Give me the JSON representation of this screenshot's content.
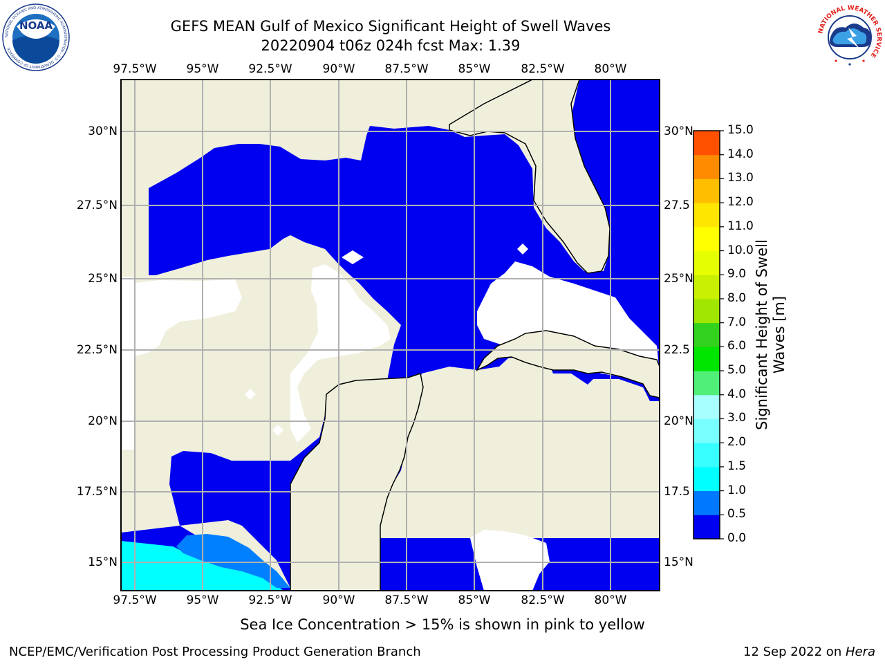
{
  "header": {
    "title_line1": "GEFS MEAN Gulf of Mexico Significant Height of Swell Waves",
    "title_line2": "20220904 t06z 024h fcst   Max: 1.39"
  },
  "axes": {
    "lon_labels": [
      "97.5°W",
      "95°W",
      "92.5°W",
      "90°W",
      "87.5°W",
      "85°W",
      "82.5°W",
      "80°W"
    ],
    "lat_labels_left": [
      "30°N",
      "27.5°N",
      "25°N",
      "22.5°N",
      "20°N",
      "17.5°N",
      "15°N"
    ],
    "lat_labels_right": [
      "30°N",
      "27.5",
      "25°N",
      "22.5",
      "20°N",
      "17.5",
      "15°N"
    ]
  },
  "colorbar": {
    "ticks": [
      "0.0",
      "0.5",
      "1.0",
      "1.5",
      "2.0",
      "3.0",
      "4.0",
      "5.0",
      "6.0",
      "7.0",
      "8.0",
      "9.0",
      "10.0",
      "11.0",
      "12.0",
      "13.0",
      "14.0",
      "15.0"
    ],
    "colors": [
      "#0000f0",
      "#0078ff",
      "#00ffff",
      "#37ffff",
      "#78ffff",
      "#a8ffff",
      "#50f078",
      "#00e600",
      "#32d21e",
      "#a0e600",
      "#c8f000",
      "#e6ff00",
      "#ffff00",
      "#ffe600",
      "#ffbe00",
      "#ff8c00",
      "#ff5000",
      "#ff2800",
      "#ff0000"
    ],
    "label": "Significant Height of Swell Waves [m]"
  },
  "map_colors": {
    "land": "#efefdc",
    "ocean_low": "#0000f0",
    "swell_med": "#0080ff",
    "swell_high": "#00ffff",
    "no_data": "#ffffff",
    "grid": "#b0b0b0"
  },
  "caption": "Sea Ice Concentration > 15% is shown in pink to yellow",
  "footer": {
    "credit": "NCEP/EMC/Verification Post Processing Product Generation Branch",
    "date_prefix": "12 Sep 2022 on ",
    "host": "Hera"
  },
  "logos": {
    "noaa_text": "NOAA",
    "noaa_ring": "NATIONAL OCEANIC AND ATMOSPHERIC ADMINISTRATION · U.S. DEPARTMENT OF COMMERCE",
    "nws_ring": "NATIONAL WEATHER SERVICE"
  }
}
